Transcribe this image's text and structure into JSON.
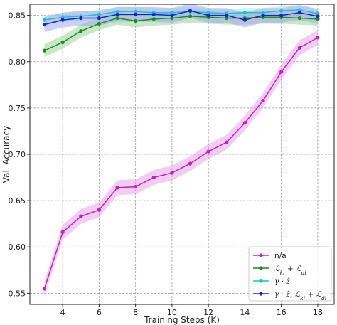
{
  "chart_data": {
    "type": "line",
    "xlabel": "Training Steps (K)",
    "ylabel": "Val. Accuracy",
    "xlim": [
      2.2,
      18.9
    ],
    "ylim": [
      0.538,
      0.862
    ],
    "xticks": [
      4,
      6,
      8,
      10,
      12,
      14,
      16,
      18
    ],
    "yticks": [
      0.55,
      0.6,
      0.65,
      0.7,
      0.75,
      0.8,
      0.85
    ],
    "xtick_labels": [
      "4",
      "6",
      "8",
      "10",
      "12",
      "14",
      "16",
      "18"
    ],
    "ytick_labels": [
      "0.55",
      "0.60",
      "0.65",
      "0.70",
      "0.75",
      "0.80",
      "0.85"
    ],
    "grid": true,
    "legend_position": "lower-right",
    "x": [
      3,
      4,
      5,
      6,
      7,
      8,
      9,
      10,
      11,
      12,
      13,
      14,
      15,
      16,
      17,
      18
    ],
    "series": [
      {
        "name": "n/a",
        "legend": {
          "type": "plain",
          "text": "n/a"
        },
        "color": "#c41fc4",
        "band_color": "#e59be5",
        "band": 0.008,
        "values": [
          0.555,
          0.616,
          0.633,
          0.64,
          0.664,
          0.665,
          0.675,
          0.68,
          0.69,
          0.703,
          0.713,
          0.734,
          0.758,
          0.789,
          0.815,
          0.826
        ]
      },
      {
        "name": "L_kl + L_dl",
        "legend": {
          "type": "math",
          "parts": [
            {
              "t": "ℒ",
              "sub": "kl"
            },
            {
              "t": " + ℒ",
              "sub": "dl"
            }
          ]
        },
        "color": "#1f8c1f",
        "band_color": "#8fd08f",
        "band": 0.007,
        "values": [
          0.812,
          0.821,
          0.833,
          0.841,
          0.847,
          0.844,
          0.846,
          0.847,
          0.849,
          0.848,
          0.847,
          0.847,
          0.848,
          0.848,
          0.847,
          0.846
        ]
      },
      {
        "name": "γ · ẑ",
        "legend": {
          "type": "math",
          "parts": [
            {
              "t": "γ · ẑ"
            }
          ]
        },
        "color": "#1fbfcf",
        "band_color": "#a6e4ea",
        "band": 0.005,
        "values": [
          0.845,
          0.848,
          0.849,
          0.851,
          0.854,
          0.854,
          0.853,
          0.853,
          0.854,
          0.853,
          0.852,
          0.853,
          0.853,
          0.855,
          0.856,
          0.852
        ]
      },
      {
        "name": "γ · ẑ, L_kl + L_dl",
        "legend": {
          "type": "math",
          "parts": [
            {
              "t": "γ · ẑ, ℒ",
              "sub": "kl"
            },
            {
              "t": " + ℒ",
              "sub": "dl"
            }
          ]
        },
        "color": "#1f1fd0",
        "band_color": "#9aa6ea",
        "band": 0.008,
        "values": [
          0.84,
          0.845,
          0.847,
          0.847,
          0.851,
          0.851,
          0.851,
          0.85,
          0.855,
          0.85,
          0.85,
          0.845,
          0.85,
          0.85,
          0.853,
          0.849
        ]
      }
    ]
  }
}
